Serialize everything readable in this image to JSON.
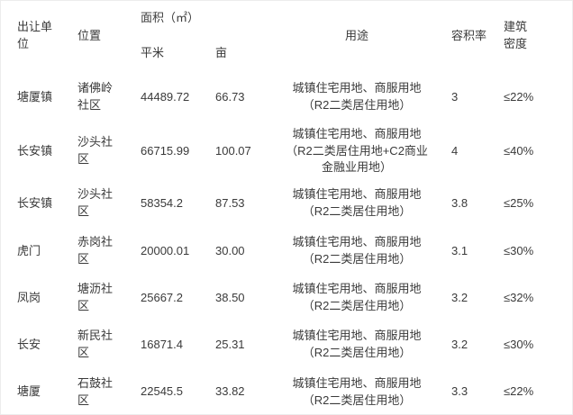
{
  "page": {
    "background_color": "#ffffff",
    "border_color": "#ececec",
    "text_color": "#3a3a3a"
  },
  "chart_data": {
    "type": "table",
    "columns": {
      "unit": "出让单位",
      "location": "位置",
      "area_group": "面积（㎡）",
      "area_sqm": "平米",
      "area_mu": "亩",
      "usage": "用途",
      "plot_ratio": "容积率",
      "building_density": "建筑密度"
    },
    "rows": [
      {
        "unit": "塘厦镇",
        "location": "诸佛岭社区",
        "sqm": "44489.72",
        "mu": "66.73",
        "usage": [
          "城镇住宅用地、商服用地",
          "（R2二类居住用地）"
        ],
        "plot_ratio": "3",
        "building_density": "≤22%"
      },
      {
        "unit": "长安镇",
        "location": "沙头社区",
        "sqm": "66715.99",
        "mu": "100.07",
        "usage": [
          "城镇住宅用地、商服用地",
          "（R2二类居住用地+C2商业",
          "金融业用地）"
        ],
        "plot_ratio": "4",
        "building_density": "≤40%"
      },
      {
        "unit": "长安镇",
        "location": "沙头社区",
        "sqm": "58354.2",
        "mu": "87.53",
        "usage": [
          "城镇住宅用地、商服用地",
          "（R2二类居住用地）"
        ],
        "plot_ratio": "3.8",
        "building_density": "≤25%"
      },
      {
        "unit": "虎门",
        "location": "赤岗社区",
        "sqm": "20000.01",
        "mu": "30.00",
        "usage": [
          "城镇住宅用地、商服用地",
          "（R2二类居住用地）"
        ],
        "plot_ratio": "3.1",
        "building_density": "≤30%"
      },
      {
        "unit": "凤岗",
        "location": "塘沥社区",
        "sqm": "25667.2",
        "mu": "38.50",
        "usage": [
          "城镇住宅用地、商服用地",
          "（R2二类居住用地）"
        ],
        "plot_ratio": "3.2",
        "building_density": "≤32%"
      },
      {
        "unit": "长安",
        "location": "新民社区",
        "sqm": "16871.4",
        "mu": "25.31",
        "usage": [
          "城镇住宅用地、商服用地",
          "（R2二类居住用地）"
        ],
        "plot_ratio": "3.2",
        "building_density": "≤30%"
      },
      {
        "unit": "塘厦",
        "location": "石鼓社区",
        "sqm": "22545.5",
        "mu": "33.82",
        "usage": [
          "城镇住宅用地、商服用地",
          "（R2二类居住用地）"
        ],
        "plot_ratio": "3.3",
        "building_density": "≤22%"
      }
    ]
  }
}
